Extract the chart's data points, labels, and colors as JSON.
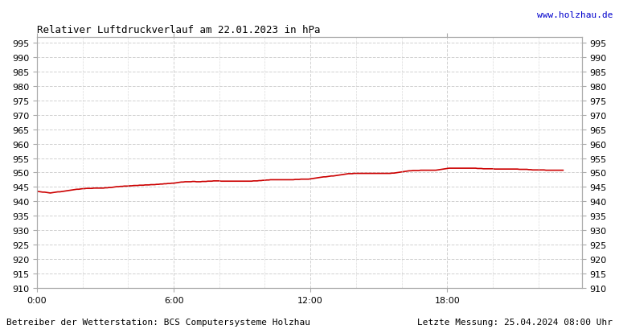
{
  "title": "Relativer Luftdruckverlauf am 22.01.2023 in hPa",
  "website": "www.holzhau.de",
  "footer_left": "Betreiber der Wetterstation: BCS Computersysteme Holzhau",
  "footer_right": "Letzte Messung: 25.04.2024 08:00 Uhr",
  "bg_color": "#ffffff",
  "plot_bg_color": "#ffffff",
  "grid_color": "#cccccc",
  "line_color": "#cc0000",
  "title_color": "#000000",
  "website_color": "#0000cc",
  "footer_color": "#000000",
  "x_tick_labels": [
    "0:00",
    "6:00",
    "12:00",
    "18:00"
  ],
  "x_tick_positions": [
    0,
    72,
    144,
    216
  ],
  "x_minor_tick_positions": [
    24,
    48,
    96,
    120,
    168,
    192
  ],
  "ylim": [
    910,
    997
  ],
  "yticks": [
    910,
    915,
    920,
    925,
    930,
    935,
    940,
    945,
    950,
    955,
    960,
    965,
    970,
    975,
    980,
    985,
    990,
    995
  ],
  "xlim": [
    0,
    287
  ],
  "pressure_values": [
    943.5,
    943.4,
    943.3,
    943.2,
    943.2,
    943.1,
    943.0,
    942.9,
    943.0,
    943.1,
    943.2,
    943.3,
    943.3,
    943.4,
    943.5,
    943.6,
    943.7,
    943.8,
    943.9,
    944.0,
    944.1,
    944.2,
    944.2,
    944.3,
    944.4,
    944.4,
    944.5,
    944.5,
    944.5,
    944.5,
    944.6,
    944.6,
    944.6,
    944.6,
    944.6,
    944.6,
    944.7,
    944.7,
    944.8,
    944.8,
    944.9,
    945.0,
    945.1,
    945.1,
    945.2,
    945.2,
    945.3,
    945.3,
    945.3,
    945.4,
    945.4,
    945.5,
    945.5,
    945.5,
    945.6,
    945.6,
    945.6,
    945.7,
    945.7,
    945.7,
    945.8,
    945.8,
    945.8,
    945.9,
    945.9,
    946.0,
    946.0,
    946.1,
    946.1,
    946.2,
    946.2,
    946.3,
    946.3,
    946.4,
    946.5,
    946.6,
    946.7,
    946.7,
    946.8,
    946.8,
    946.8,
    946.8,
    946.9,
    946.9,
    946.8,
    946.8,
    946.8,
    946.9,
    946.9,
    946.9,
    947.0,
    947.0,
    947.0,
    947.1,
    947.1,
    947.1,
    947.1,
    947.0,
    947.0,
    947.0,
    947.0,
    947.0,
    947.0,
    947.0,
    947.0,
    947.0,
    947.0,
    947.0,
    947.0,
    947.0,
    947.0,
    947.0,
    947.0,
    947.0,
    947.1,
    947.1,
    947.1,
    947.2,
    947.2,
    947.3,
    947.3,
    947.4,
    947.4,
    947.5,
    947.5,
    947.5,
    947.5,
    947.5,
    947.5,
    947.5,
    947.5,
    947.5,
    947.5,
    947.5,
    947.5,
    947.5,
    947.6,
    947.6,
    947.6,
    947.7,
    947.7,
    947.7,
    947.7,
    947.7,
    947.8,
    947.9,
    948.0,
    948.1,
    948.2,
    948.3,
    948.4,
    948.5,
    948.5,
    948.6,
    948.7,
    948.8,
    948.8,
    948.9,
    949.0,
    949.1,
    949.2,
    949.3,
    949.4,
    949.5,
    949.6,
    949.6,
    949.6,
    949.7,
    949.7,
    949.7,
    949.7,
    949.7,
    949.7,
    949.7,
    949.7,
    949.7,
    949.7,
    949.7,
    949.7,
    949.7,
    949.7,
    949.7,
    949.7,
    949.7,
    949.7,
    949.7,
    949.7,
    949.8,
    949.8,
    949.9,
    950.0,
    950.1,
    950.2,
    950.3,
    950.4,
    950.5,
    950.6,
    950.6,
    950.7,
    950.7,
    950.7,
    950.7,
    950.8,
    950.8,
    950.8,
    950.8,
    950.8,
    950.8,
    950.8,
    950.8,
    950.8,
    950.9,
    951.0,
    951.1,
    951.2,
    951.3,
    951.4,
    951.5,
    951.5,
    951.5,
    951.5,
    951.5,
    951.5,
    951.5,
    951.5,
    951.5,
    951.5,
    951.5,
    951.5,
    951.5,
    951.5,
    951.5,
    951.4,
    951.4,
    951.4,
    951.3,
    951.3,
    951.3,
    951.3,
    951.3,
    951.3,
    951.2,
    951.2,
    951.2,
    951.2,
    951.2,
    951.2,
    951.2,
    951.2,
    951.2,
    951.2,
    951.2,
    951.2,
    951.2,
    951.1,
    951.1,
    951.1,
    951.1,
    951.1,
    951.0,
    951.0,
    950.9,
    950.9,
    950.9,
    950.9,
    950.9,
    950.9,
    950.9,
    950.8,
    950.8,
    950.8,
    950.8,
    950.8,
    950.8,
    950.8,
    950.8,
    950.8,
    950.8
  ]
}
